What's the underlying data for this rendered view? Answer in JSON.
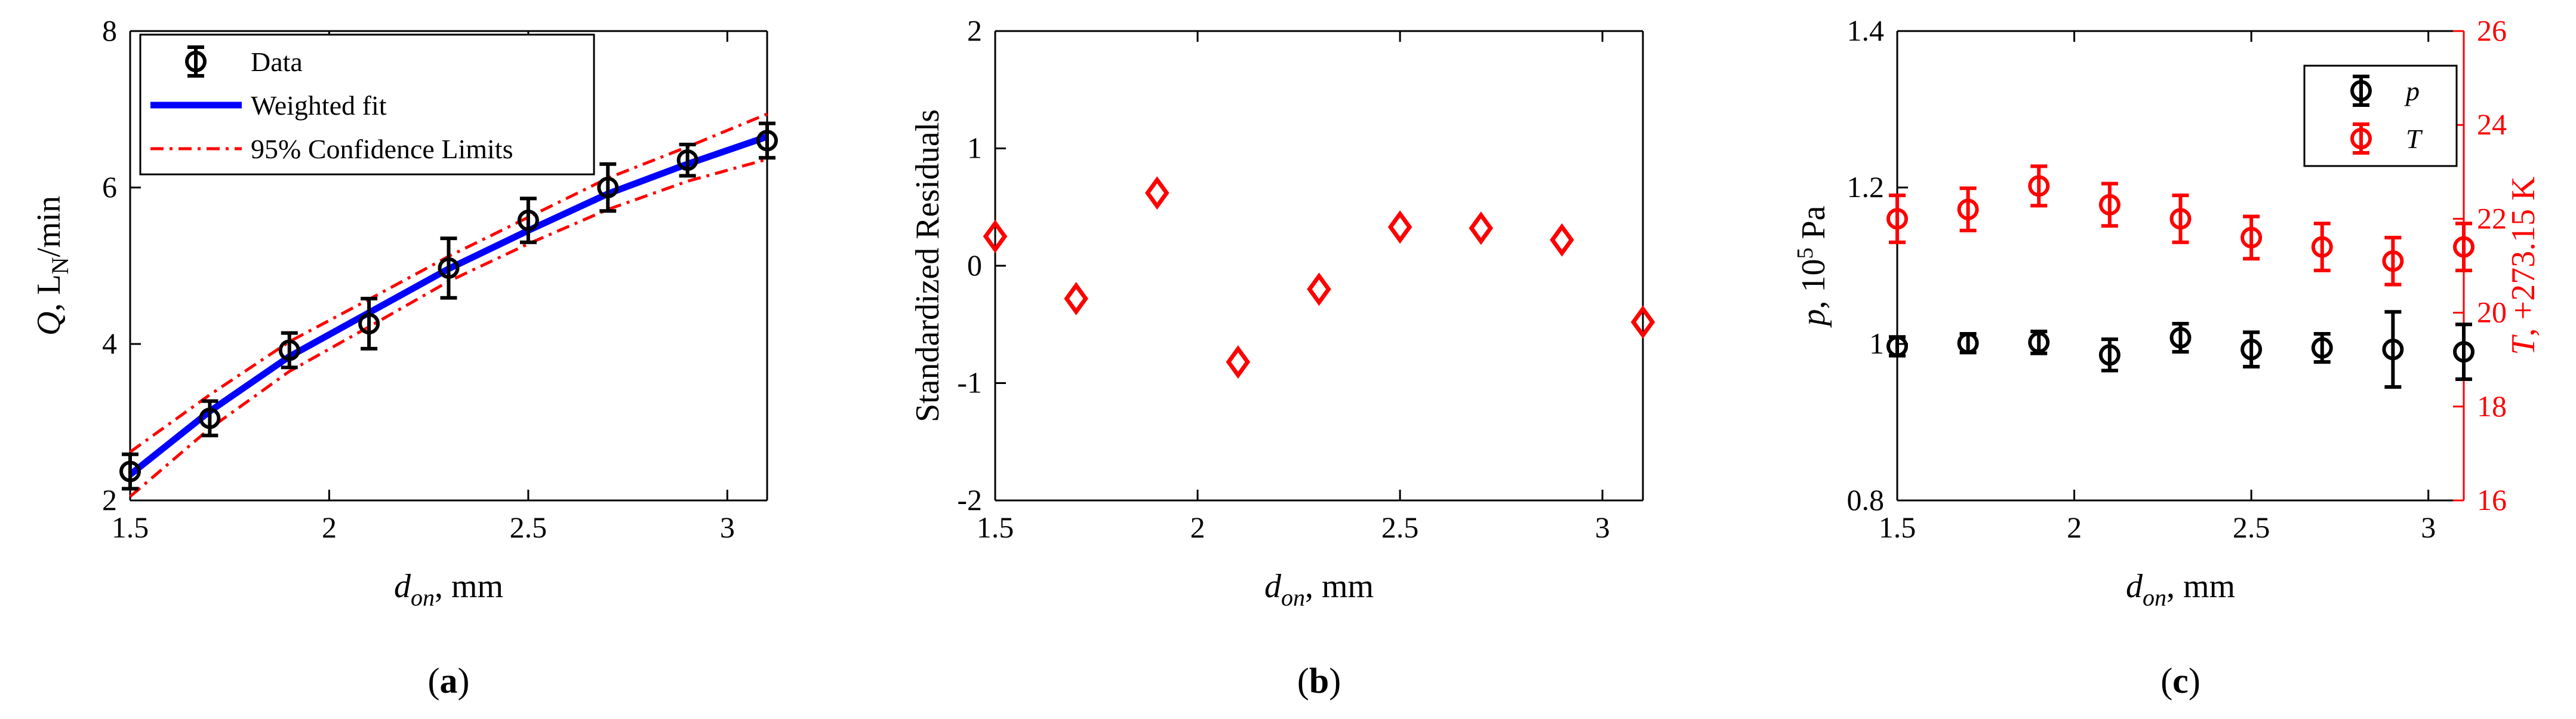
{
  "chart_data": [
    {
      "id": "a",
      "type": "scatter",
      "panel_label": "a",
      "xlabel": {
        "main": "d",
        "sub": "on",
        "rest": ", mm"
      },
      "ylabel": {
        "italic": "Q",
        "rest": ", L",
        "sub": "N",
        "after": "/min"
      },
      "xlim": [
        1.5,
        3.1
      ],
      "ylim": [
        2,
        8
      ],
      "xticks": [
        1.5,
        2,
        2.5,
        3
      ],
      "xtick_labels": [
        "1.5",
        "2",
        "2.5",
        "3"
      ],
      "yticks": [
        2,
        4,
        6,
        8
      ],
      "ytick_labels": [
        "2",
        "4",
        "6",
        "8"
      ],
      "legend_position": "top-left",
      "legend": [
        "Data",
        "Weighted fit",
        "95% Confidence Limits"
      ],
      "colors": {
        "data": "#000000",
        "fit": "#0000ff",
        "conf": "#ff0000"
      },
      "series": [
        {
          "name": "Data",
          "x": [
            1.5,
            1.7,
            1.9,
            2.1,
            2.3,
            2.5,
            2.7,
            2.9,
            3.1
          ],
          "y": [
            2.37,
            3.05,
            3.92,
            4.26,
            4.97,
            5.58,
            6.0,
            6.35,
            6.6
          ],
          "err": [
            0.22,
            0.22,
            0.22,
            0.32,
            0.38,
            0.28,
            0.3,
            0.2,
            0.22
          ]
        },
        {
          "name": "Weighted fit",
          "x": [
            1.5,
            1.7,
            1.9,
            2.1,
            2.3,
            2.5,
            2.7,
            2.9,
            3.1
          ],
          "y": [
            2.33,
            3.14,
            3.84,
            4.4,
            4.96,
            5.45,
            5.92,
            6.3,
            6.65
          ]
        },
        {
          "name": "95% Confidence Limits",
          "x": [
            1.5,
            1.7,
            1.9,
            2.1,
            2.3,
            2.5,
            2.7,
            2.9,
            3.1
          ],
          "upper": [
            2.62,
            3.35,
            4.03,
            4.57,
            5.12,
            5.62,
            6.12,
            6.52,
            6.94
          ],
          "lower": [
            2.05,
            2.92,
            3.65,
            4.22,
            4.8,
            5.28,
            5.72,
            6.08,
            6.36
          ]
        }
      ]
    },
    {
      "id": "b",
      "type": "scatter",
      "panel_label": "b",
      "xlabel": {
        "main": "d",
        "sub": "on",
        "rest": ", mm"
      },
      "ylabel": {
        "plain": "Standardized Residuals"
      },
      "xlim": [
        1.5,
        3.1
      ],
      "ylim": [
        -2,
        2
      ],
      "xticks": [
        1.5,
        2,
        2.5,
        3
      ],
      "xtick_labels": [
        "1.5",
        "2",
        "2.5",
        "3"
      ],
      "yticks": [
        -2,
        -1,
        0,
        1,
        2
      ],
      "ytick_labels": [
        "-2",
        "-1",
        "0",
        "1",
        "2"
      ],
      "marker_color": "#ff0000",
      "series": [
        {
          "x": [
            1.5,
            1.7,
            1.9,
            2.1,
            2.3,
            2.5,
            2.7,
            2.9,
            3.1
          ],
          "y": [
            0.25,
            -0.28,
            0.62,
            -0.82,
            -0.2,
            0.33,
            0.32,
            0.22,
            -0.48
          ]
        }
      ]
    },
    {
      "id": "c",
      "type": "scatter",
      "panel_label": "c",
      "xlabel": {
        "main": "d",
        "sub": "on",
        "rest": ", mm"
      },
      "ylabel": {
        "italic": "p",
        "rest": ", 10",
        "sup": "5",
        "after": " Pa"
      },
      "ylabel_right": {
        "italic": "T",
        "rest": ", +273.15 K"
      },
      "xlim": [
        1.5,
        3.1
      ],
      "ylim": [
        0.8,
        1.4
      ],
      "ylim_right": [
        16,
        26
      ],
      "xticks": [
        1.5,
        2,
        2.5,
        3
      ],
      "xtick_labels": [
        "1.5",
        "2",
        "2.5",
        "3"
      ],
      "yticks": [
        0.8,
        1,
        1.2,
        1.4
      ],
      "ytick_labels": [
        "0.8",
        "1",
        "1.2",
        "1.4"
      ],
      "yticks_right": [
        16,
        18,
        20,
        22,
        24,
        26
      ],
      "ytick_labels_right": [
        "16",
        "18",
        "20",
        "22",
        "24",
        "26"
      ],
      "legend_position": "top-right",
      "legend": [
        "p",
        "T"
      ],
      "colors": {
        "p": "#000000",
        "T": "#ff0000"
      },
      "series": [
        {
          "name": "p",
          "axis": "left",
          "x": [
            1.5,
            1.7,
            1.9,
            2.1,
            2.3,
            2.5,
            2.7,
            2.9,
            3.1
          ],
          "y": [
            0.997,
            1.001,
            1.002,
            0.986,
            1.008,
            0.993,
            0.995,
            0.993,
            0.99
          ],
          "err": [
            0.012,
            0.012,
            0.014,
            0.02,
            0.018,
            0.022,
            0.018,
            0.048,
            0.035
          ]
        },
        {
          "name": "T",
          "axis": "right",
          "x": [
            1.5,
            1.7,
            1.9,
            2.1,
            2.3,
            2.5,
            2.7,
            2.9,
            3.1
          ],
          "y": [
            22.0,
            22.2,
            22.7,
            22.3,
            22.0,
            21.6,
            21.4,
            21.1,
            21.4
          ],
          "err": [
            0.5,
            0.45,
            0.42,
            0.45,
            0.5,
            0.45,
            0.5,
            0.5,
            0.5
          ]
        }
      ]
    }
  ]
}
